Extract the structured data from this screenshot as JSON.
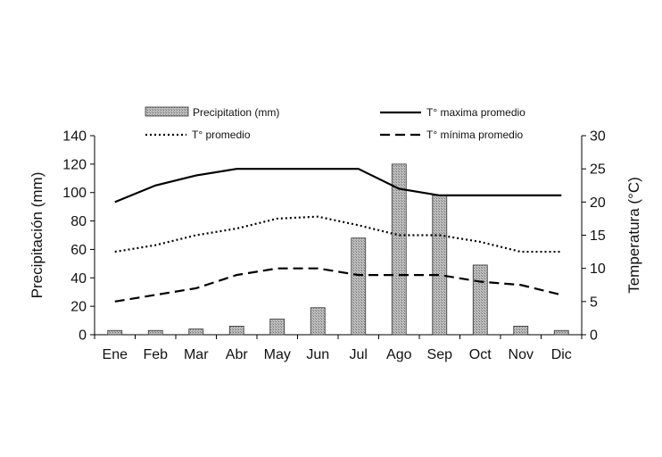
{
  "chart_data": {
    "type": "bar",
    "categories": [
      "Ene",
      "Feb",
      "Mar",
      "Abr",
      "May",
      "Jun",
      "Jul",
      "Ago",
      "Sep",
      "Oct",
      "Nov",
      "Dic"
    ],
    "bars": {
      "name": "Precipitation (mm)",
      "axis": "left",
      "values": [
        3,
        3,
        4,
        6,
        11,
        19,
        68,
        120,
        98,
        49,
        6,
        3
      ]
    },
    "lines": [
      {
        "name": "T° maxima promedio",
        "axis": "right",
        "style": "solid",
        "values": [
          20,
          22.5,
          24,
          25,
          25,
          25,
          25,
          22,
          21,
          21,
          21,
          21
        ]
      },
      {
        "name": "T° promedio",
        "axis": "right",
        "style": "dotted",
        "values": [
          12.5,
          13.5,
          15,
          16,
          17.5,
          17.8,
          16.5,
          15,
          15,
          14,
          12.5,
          12.5
        ]
      },
      {
        "name": "T° mínima promedio",
        "axis": "right",
        "style": "dashed",
        "values": [
          5,
          6,
          7,
          9,
          10,
          10,
          9,
          9,
          9,
          8,
          7.5,
          6
        ]
      }
    ],
    "ylabel": "Precipitación (mm)",
    "y2label": "Temperatura (°C)",
    "ylim": [
      0,
      140
    ],
    "yticks": [
      0,
      20,
      40,
      60,
      80,
      100,
      120,
      140
    ],
    "y2lim": [
      0,
      30
    ],
    "y2ticks": [
      0,
      5,
      10,
      15,
      20,
      25,
      30
    ],
    "grid": false,
    "legend_position": "top"
  }
}
